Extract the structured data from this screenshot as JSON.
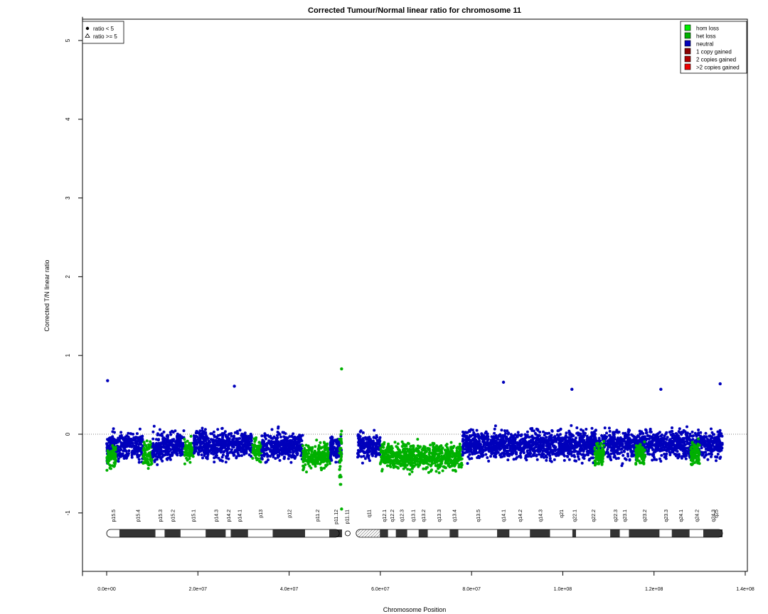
{
  "chart_data": {
    "type": "scatter",
    "title": "Corrected Tumour/Normal linear ratio for chromosome  11",
    "xlabel": "Chromosome Position",
    "ylabel": "Corrected T/N linear ratio",
    "xlim": [
      0,
      140000000
    ],
    "ylim": [
      -1.8,
      5.3
    ],
    "x_ticks": [
      0,
      20000000,
      40000000,
      60000000,
      80000000,
      100000000,
      120000000,
      140000000
    ],
    "x_tick_labels": [
      "0.0e+00",
      "2.0e+07",
      "4.0e+07",
      "6.0e+07",
      "8.0e+07",
      "1.0e+08",
      "1.2e+08",
      "1.4e+08"
    ],
    "y_ticks": [
      -1,
      0,
      1,
      2,
      3,
      4,
      5
    ],
    "y_tick_labels": [
      "-1",
      "0",
      "1",
      "2",
      "3",
      "4",
      "5"
    ],
    "reference_line": 0,
    "shape_legend": {
      "placement": "top-left",
      "entries": [
        {
          "label": "ratio < 5",
          "shape": "dot"
        },
        {
          "label": "ratio >= 5",
          "shape": "triangle"
        }
      ]
    },
    "color_legend": {
      "placement": "top-right",
      "entries": [
        {
          "label": "hom loss",
          "color": "#00ee00"
        },
        {
          "label": "het loss",
          "color": "#00b000"
        },
        {
          "label": "neutral",
          "color": "#0000bb"
        },
        {
          "label": "1 copy gained",
          "color": "#8b0000"
        },
        {
          "label": "2 copies gained",
          "color": "#b00000"
        },
        {
          "label": ">2 copies gained",
          "color": "#ee0000"
        }
      ]
    },
    "segments": [
      {
        "status": "neutral",
        "start": 0,
        "end": 3000000,
        "center": -0.17,
        "spread": 0.28
      },
      {
        "status": "het loss",
        "start": 0,
        "end": 2000000,
        "center": -0.3,
        "spread": 0.22
      },
      {
        "status": "neutral",
        "start": 3000000,
        "end": 8000000,
        "center": -0.15,
        "spread": 0.27
      },
      {
        "status": "het loss",
        "start": 8000000,
        "end": 10000000,
        "center": -0.25,
        "spread": 0.24
      },
      {
        "status": "neutral",
        "start": 10000000,
        "end": 17000000,
        "center": -0.15,
        "spread": 0.27
      },
      {
        "status": "het loss",
        "start": 17000000,
        "end": 19000000,
        "center": -0.22,
        "spread": 0.2
      },
      {
        "status": "neutral",
        "start": 19000000,
        "end": 32000000,
        "center": -0.13,
        "spread": 0.28
      },
      {
        "status": "het loss",
        "start": 32000000,
        "end": 34000000,
        "center": -0.2,
        "spread": 0.2
      },
      {
        "status": "neutral",
        "start": 34000000,
        "end": 43000000,
        "center": -0.15,
        "spread": 0.27
      },
      {
        "status": "het loss",
        "start": 43000000,
        "end": 49000000,
        "center": -0.28,
        "spread": 0.24
      },
      {
        "status": "neutral",
        "start": 49000000,
        "end": 51500000,
        "center": -0.18,
        "spread": 0.25
      },
      {
        "status": "het loss",
        "start": 51000000,
        "end": 51500000,
        "center": -0.3,
        "spread": 0.5
      },
      {
        "status": "neutral",
        "start": 55000000,
        "end": 60000000,
        "center": -0.15,
        "spread": 0.27
      },
      {
        "status": "het loss",
        "start": 60000000,
        "end": 78000000,
        "center": -0.28,
        "spread": 0.25
      },
      {
        "status": "neutral",
        "start": 78000000,
        "end": 135000000,
        "center": -0.13,
        "spread": 0.28
      },
      {
        "status": "het loss",
        "start": 107000000,
        "end": 109000000,
        "center": -0.25,
        "spread": 0.22
      },
      {
        "status": "het loss",
        "start": 116000000,
        "end": 118000000,
        "center": -0.25,
        "spread": 0.22
      },
      {
        "status": "het loss",
        "start": 128000000,
        "end": 130000000,
        "center": -0.25,
        "spread": 0.22
      }
    ],
    "outliers": [
      {
        "x": 200000,
        "y": 0.68,
        "status": "neutral"
      },
      {
        "x": 28000000,
        "y": 0.61,
        "status": "neutral"
      },
      {
        "x": 51500000,
        "y": 0.83,
        "status": "het loss"
      },
      {
        "x": 51500000,
        "y": -0.95,
        "status": "het loss"
      },
      {
        "x": 87000000,
        "y": 0.66,
        "status": "neutral"
      },
      {
        "x": 134500000,
        "y": 0.64,
        "status": "neutral"
      },
      {
        "x": 102000000,
        "y": 0.57,
        "status": "neutral"
      },
      {
        "x": 121500000,
        "y": 0.57,
        "status": "neutral"
      }
    ],
    "ideogram": {
      "centromere_start": 51000000,
      "centromere_end": 55000000,
      "bands": [
        {
          "name": "p15.5",
          "start": 0,
          "end": 2800000,
          "stain": "light"
        },
        {
          "name": "p15.4",
          "start": 2800000,
          "end": 10700000,
          "stain": "dark"
        },
        {
          "name": "p15.3",
          "start": 10700000,
          "end": 12700000,
          "stain": "light"
        },
        {
          "name": "p15.2",
          "start": 12700000,
          "end": 16200000,
          "stain": "dark"
        },
        {
          "name": "p15.1",
          "start": 16200000,
          "end": 21700000,
          "stain": "light"
        },
        {
          "name": "p14.3",
          "start": 21700000,
          "end": 26100000,
          "stain": "dark"
        },
        {
          "name": "p14.2",
          "start": 26100000,
          "end": 27200000,
          "stain": "light"
        },
        {
          "name": "p14.1",
          "start": 27200000,
          "end": 31000000,
          "stain": "dark"
        },
        {
          "name": "p13",
          "start": 31000000,
          "end": 36400000,
          "stain": "light"
        },
        {
          "name": "p12",
          "start": 36400000,
          "end": 43500000,
          "stain": "dark"
        },
        {
          "name": "p11.2",
          "start": 43500000,
          "end": 48800000,
          "stain": "light"
        },
        {
          "name": "p11.12",
          "start": 48800000,
          "end": 51600000,
          "stain": "dark"
        },
        {
          "name": "p11.11",
          "start": 51600000,
          "end": 53700000,
          "stain": "light"
        },
        {
          "name": "q11",
          "start": 55000000,
          "end": 59900000,
          "stain": "gvar"
        },
        {
          "name": "q12.1",
          "start": 59900000,
          "end": 61700000,
          "stain": "dark"
        },
        {
          "name": "q12.2",
          "start": 61700000,
          "end": 63400000,
          "stain": "light"
        },
        {
          "name": "q12.3",
          "start": 63400000,
          "end": 65900000,
          "stain": "dark"
        },
        {
          "name": "q13.1",
          "start": 65900000,
          "end": 68400000,
          "stain": "light"
        },
        {
          "name": "q13.2",
          "start": 68400000,
          "end": 70400000,
          "stain": "dark"
        },
        {
          "name": "q13.3",
          "start": 70400000,
          "end": 75200000,
          "stain": "light"
        },
        {
          "name": "q13.4",
          "start": 75200000,
          "end": 77100000,
          "stain": "dark"
        },
        {
          "name": "q13.5",
          "start": 77100000,
          "end": 85600000,
          "stain": "light"
        },
        {
          "name": "q14.1",
          "start": 85600000,
          "end": 88300000,
          "stain": "dark"
        },
        {
          "name": "q14.2",
          "start": 88300000,
          "end": 92800000,
          "stain": "light"
        },
        {
          "name": "q14.3",
          "start": 92800000,
          "end": 97200000,
          "stain": "dark"
        },
        {
          "name": "q21",
          "start": 97200000,
          "end": 102100000,
          "stain": "light"
        },
        {
          "name": "q22.1",
          "start": 102100000,
          "end": 102900000,
          "stain": "dark"
        },
        {
          "name": "q22.2",
          "start": 102900000,
          "end": 110400000,
          "stain": "light"
        },
        {
          "name": "q22.3",
          "start": 110400000,
          "end": 112500000,
          "stain": "dark"
        },
        {
          "name": "q23.1",
          "start": 112500000,
          "end": 114500000,
          "stain": "light"
        },
        {
          "name": "q23.2",
          "start": 114500000,
          "end": 121200000,
          "stain": "dark"
        },
        {
          "name": "q23.3",
          "start": 121200000,
          "end": 123900000,
          "stain": "light"
        },
        {
          "name": "q24.1",
          "start": 123900000,
          "end": 127800000,
          "stain": "dark"
        },
        {
          "name": "q24.2",
          "start": 127800000,
          "end": 130800000,
          "stain": "light"
        },
        {
          "name": "q24.3",
          "start": 130800000,
          "end": 135006516,
          "stain": "dark"
        },
        {
          "name": "q25",
          "start": 135006516,
          "end": 135006516,
          "stain": "light"
        }
      ]
    }
  }
}
